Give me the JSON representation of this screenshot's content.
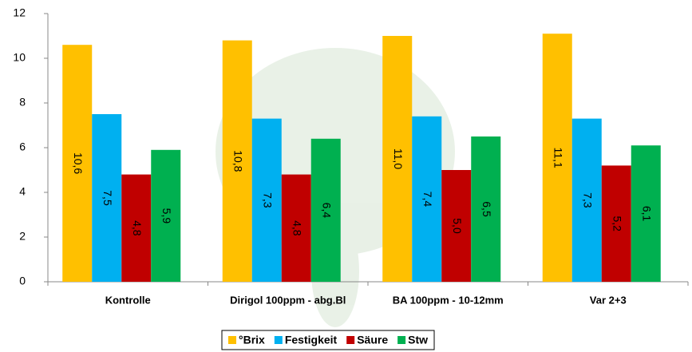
{
  "chart_data": {
    "type": "bar",
    "categories": [
      "Kontrolle",
      "Dirigol 100ppm - abg.Bl",
      "BA 100ppm - 10-12mm",
      "Var 2+3"
    ],
    "series": [
      {
        "name": "°Brix",
        "color": "#FFC000",
        "values": [
          10.6,
          10.8,
          11.0,
          11.1
        ],
        "value_labels": [
          "10,6",
          "10,8",
          "11,0",
          "11,1"
        ]
      },
      {
        "name": "Festigkeit",
        "color": "#00B0F0",
        "values": [
          7.5,
          7.3,
          7.4,
          7.3
        ],
        "value_labels": [
          "7,5",
          "7,3",
          "7,4",
          "7,3"
        ]
      },
      {
        "name": "Säure",
        "color": "#C00000",
        "values": [
          4.8,
          4.8,
          5.0,
          5.2
        ],
        "value_labels": [
          "4,8",
          "4,8",
          "5,0",
          "5,2"
        ]
      },
      {
        "name": "Stw",
        "color": "#00B050",
        "values": [
          5.9,
          6.4,
          6.5,
          6.1
        ],
        "value_labels": [
          "5,9",
          "6,4",
          "6,5",
          "6,1"
        ]
      }
    ],
    "ylim": [
      0,
      12
    ],
    "yticks": [
      0,
      2,
      4,
      6,
      8,
      10,
      12
    ],
    "grid": false,
    "legend": "bottom"
  }
}
